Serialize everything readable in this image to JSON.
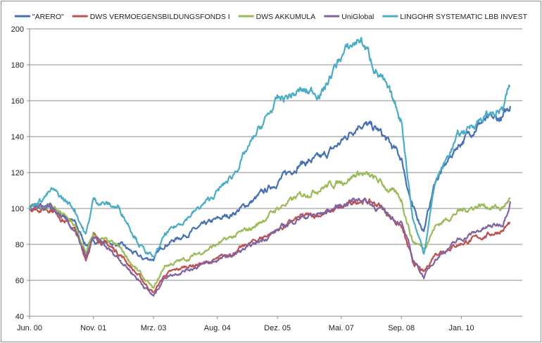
{
  "chart_data": {
    "type": "line",
    "title": "",
    "xlabel": "",
    "ylabel": "",
    "ylim": [
      40,
      200
    ],
    "yticks": [
      "40",
      "60",
      "80",
      "100",
      "120",
      "140",
      "160",
      "180",
      "200"
    ],
    "xticks": [
      "Jun. 00",
      "Nov. 01",
      "Mrz. 03",
      "Aug. 04",
      "Dez. 05",
      "Mai. 07",
      "Sep. 08",
      "Jan. 10"
    ],
    "xtick_month_index": [
      0,
      17,
      33,
      50,
      66,
      83,
      99,
      115
    ],
    "grid": "horizontal",
    "legend_position": "top",
    "x_month_index": [
      0,
      6,
      12,
      15,
      17,
      24,
      30,
      33,
      36,
      42,
      48,
      54,
      60,
      66,
      72,
      78,
      83,
      88,
      93,
      99,
      102,
      105,
      108,
      114,
      120,
      126,
      128
    ],
    "series": [
      {
        "name": "\"ARERO\"",
        "color": "#4672b4",
        "values": [
          100,
          100,
          92,
          80,
          82,
          80,
          72,
          72,
          80,
          86,
          92,
          97,
          105,
          115,
          125,
          128,
          137,
          148,
          143,
          128,
          100,
          88,
          115,
          135,
          148,
          150,
          157
        ]
      },
      {
        "name": "DWS VERMOEGENSBILDUNGSFONDS  I",
        "color": "#c0504d",
        "values": [
          100,
          100,
          88,
          72,
          85,
          75,
          60,
          53,
          63,
          68,
          70,
          75,
          82,
          88,
          95,
          97,
          100,
          105,
          102,
          90,
          70,
          64,
          75,
          80,
          84,
          88,
          92
        ]
      },
      {
        "name": "DWS AKKUMULA",
        "color": "#9bbb59",
        "values": [
          100,
          102,
          90,
          75,
          85,
          78,
          62,
          55,
          68,
          72,
          78,
          84,
          90,
          100,
          107,
          112,
          115,
          120,
          115,
          105,
          82,
          78,
          90,
          98,
          102,
          100,
          106
        ]
      },
      {
        "name": "UniGlobal",
        "color": "#8064a2",
        "values": [
          100,
          100,
          88,
          72,
          84,
          72,
          58,
          51,
          62,
          66,
          70,
          74,
          80,
          88,
          95,
          97,
          102,
          106,
          100,
          92,
          72,
          62,
          72,
          82,
          88,
          92,
          104
        ]
      },
      {
        "name": "LINGOHR SYSTEMATIC  LBB INVEST",
        "color": "#4bacc6",
        "values": [
          100,
          110,
          100,
          85,
          105,
          100,
          78,
          72,
          85,
          95,
          105,
          118,
          140,
          160,
          165,
          165,
          185,
          195,
          175,
          150,
          95,
          75,
          115,
          140,
          150,
          155,
          168
        ]
      }
    ]
  }
}
